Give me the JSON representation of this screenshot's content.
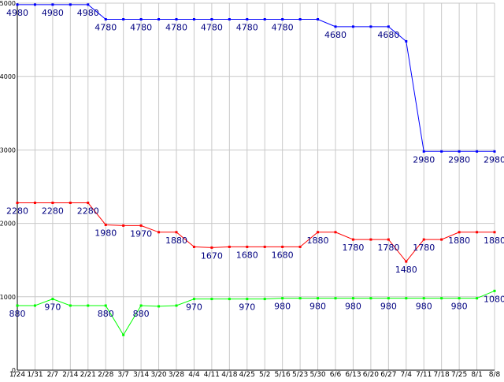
{
  "chart_data": {
    "type": "line",
    "title": "",
    "xlabel": "",
    "ylabel": "",
    "ylim": [
      0,
      5000
    ],
    "grid": true,
    "legend": "none",
    "yticks": [
      "0",
      "1000",
      "2000",
      "3000",
      "4000",
      "5000"
    ],
    "categories": [
      "1/24",
      "1/31",
      "2/7",
      "2/14",
      "2/21",
      "2/28",
      "3/7",
      "3/14",
      "3/20",
      "3/28",
      "4/4",
      "4/11",
      "4/18",
      "4/25",
      "5/2",
      "5/16",
      "5/23",
      "5/30",
      "6/6",
      "6/13",
      "6/20",
      "6/27",
      "7/4",
      "7/11",
      "7/18",
      "7/25",
      "8/1",
      "8/8"
    ],
    "series": [
      {
        "color": "#0000ff",
        "values": [
          4980,
          4980,
          4980,
          4980,
          4980,
          4780,
          4780,
          4780,
          4780,
          4780,
          4780,
          4780,
          4780,
          4780,
          4780,
          4780,
          4780,
          4780,
          4680,
          4680,
          4680,
          4680,
          4480,
          2980,
          2980,
          2980,
          2980,
          2980
        ],
        "labels": [
          "4980",
          "",
          "4980",
          "",
          "4980",
          "4780",
          "",
          "4780",
          "",
          "4780",
          "",
          "4780",
          "",
          "4780",
          "",
          "4780",
          "",
          "",
          "4680",
          "",
          "",
          "4680",
          "",
          "2980",
          "",
          "2980",
          "",
          "2980"
        ]
      },
      {
        "color": "#ff0000",
        "values": [
          2280,
          2280,
          2280,
          2280,
          2280,
          1980,
          1970,
          1970,
          1880,
          1880,
          1680,
          1670,
          1680,
          1680,
          1680,
          1680,
          1680,
          1880,
          1880,
          1780,
          1780,
          1780,
          1480,
          1780,
          1780,
          1880,
          1880,
          1880
        ],
        "labels": [
          "2280",
          "",
          "2280",
          "",
          "2280",
          "1980",
          "",
          "1970",
          "",
          "1880",
          "",
          "1670",
          "",
          "1680",
          "",
          "1680",
          "",
          "1880",
          "",
          "1780",
          "",
          "1780",
          "1480",
          "1780",
          "",
          "1880",
          "",
          "1880"
        ]
      },
      {
        "color": "#00ff00",
        "values": [
          880,
          880,
          970,
          880,
          880,
          880,
          480,
          880,
          870,
          880,
          970,
          970,
          970,
          970,
          970,
          980,
          980,
          980,
          980,
          980,
          980,
          980,
          980,
          980,
          980,
          980,
          980,
          1080
        ],
        "labels": [
          "880",
          "",
          "970",
          "",
          "",
          "880",
          "",
          "880",
          "",
          "",
          "970",
          "",
          "",
          "970",
          "",
          "980",
          "",
          "980",
          "",
          "980",
          "",
          "980",
          "",
          "980",
          "",
          "980",
          "",
          "1080"
        ]
      }
    ]
  }
}
